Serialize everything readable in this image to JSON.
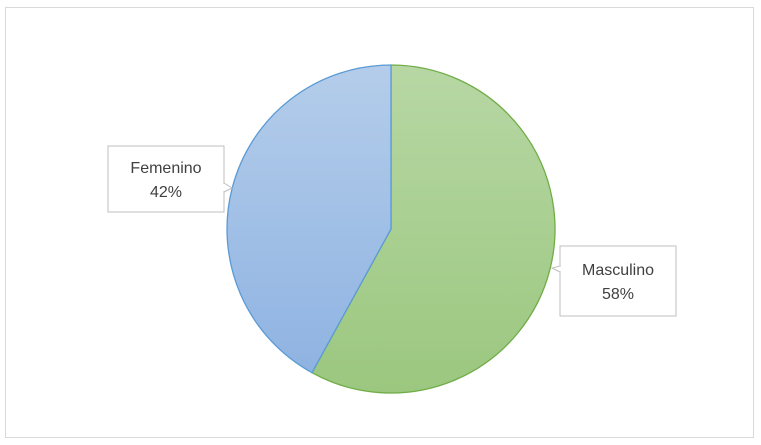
{
  "chart_data": {
    "type": "pie",
    "title": "",
    "slices": [
      {
        "name": "Masculino",
        "value": 58,
        "label": "58%",
        "color": "#9dc983",
        "stroke": "#70ad47"
      },
      {
        "name": "Femenino",
        "value": 42,
        "label": "42%",
        "color": "#9fbfe5",
        "stroke": "#5b9bd5"
      }
    ],
    "data_labels": "callouts with category name and percentage",
    "legend": "none"
  }
}
